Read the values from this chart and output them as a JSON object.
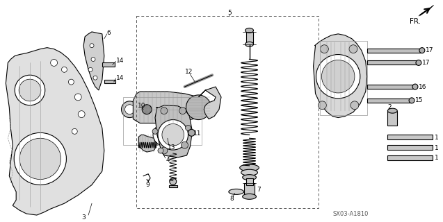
{
  "bg_color": "#ffffff",
  "line_color": "#000000",
  "gray_light": "#cccccc",
  "gray_mid": "#999999",
  "gray_dark": "#555555",
  "diagram_id": "SX03-A1810",
  "fr_label": "FR.",
  "figsize": [
    6.37,
    3.2
  ],
  "dpi": 100
}
